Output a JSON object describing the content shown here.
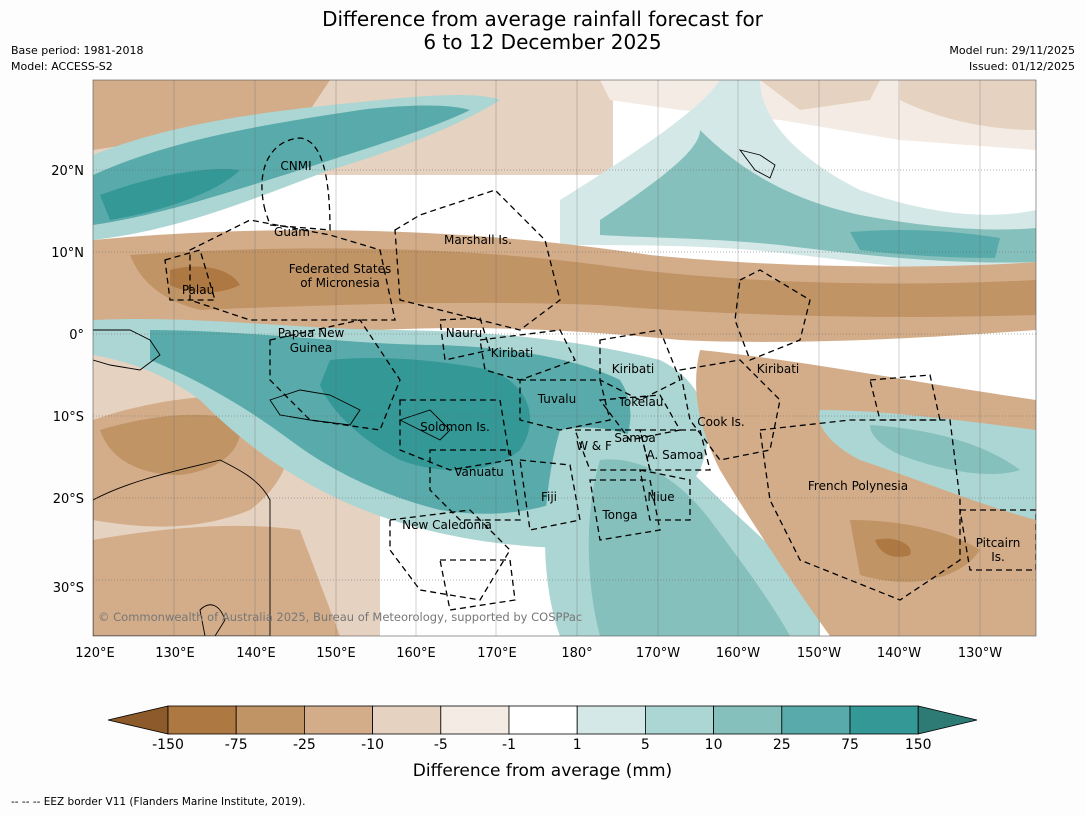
{
  "title_line1": "Difference from average rainfall forecast for",
  "title_line2": "6 to 12 December 2025",
  "base_period": "Base period: 1981-2018",
  "model": "Model: ACCESS-S2",
  "model_run": "Model run: 29/11/2025",
  "issued": "Issued: 01/12/2025",
  "copyright": "© Commonwealth of Australia 2025, Bureau of Meteorology, supported by COSPPac",
  "lat_labels": [
    "20°N",
    "10°N",
    "0°",
    "10°S",
    "20°S",
    "30°S"
  ],
  "lon_labels": [
    "120°E",
    "130°E",
    "140°E",
    "150°E",
    "160°E",
    "170°E",
    "180°",
    "170°W",
    "160°W",
    "150°W",
    "140°W",
    "130°W"
  ],
  "places": [
    {
      "name": "CNMI"
    },
    {
      "name": "Guam"
    },
    {
      "name": "Marshall Is."
    },
    {
      "name": "Federated States"
    },
    {
      "name": "of Micronesia"
    },
    {
      "name": "Palau"
    },
    {
      "name": "Papua New"
    },
    {
      "name": "Guinea"
    },
    {
      "name": "Nauru"
    },
    {
      "name": "Kiribati"
    },
    {
      "name": "Kiribati"
    },
    {
      "name": "Kiribati"
    },
    {
      "name": "Tuvalu"
    },
    {
      "name": "Tokelau"
    },
    {
      "name": "Solomon Is."
    },
    {
      "name": "Cook Is."
    },
    {
      "name": "Samoa"
    },
    {
      "name": "W & F"
    },
    {
      "name": "A. Samoa"
    },
    {
      "name": "Vanuatu"
    },
    {
      "name": "Fiji"
    },
    {
      "name": "Niue"
    },
    {
      "name": "French Polynesia"
    },
    {
      "name": "Tonga"
    },
    {
      "name": "New Caledonia"
    },
    {
      "name": "Pitcairn"
    },
    {
      "name": "Is."
    }
  ],
  "colorbar": {
    "title": "Difference from average (mm)",
    "tick_labels": [
      "-150",
      "-75",
      "-25",
      "-10",
      "-5",
      "-1",
      "1",
      "5",
      "10",
      "25",
      "75",
      "150"
    ],
    "colors": [
      "#8c5a2b",
      "#ad7841",
      "#c19466",
      "#d3ad8a",
      "#e6d2c0",
      "#f4ebe4",
      "#ffffff",
      "#d4e9e7",
      "#acd6d3",
      "#85c0bd",
      "#59abab",
      "#339896",
      "#2e7a75"
    ]
  },
  "footnote": "--  --  -- EEZ border V11 (Flanders Marine Institute, 2019)."
}
